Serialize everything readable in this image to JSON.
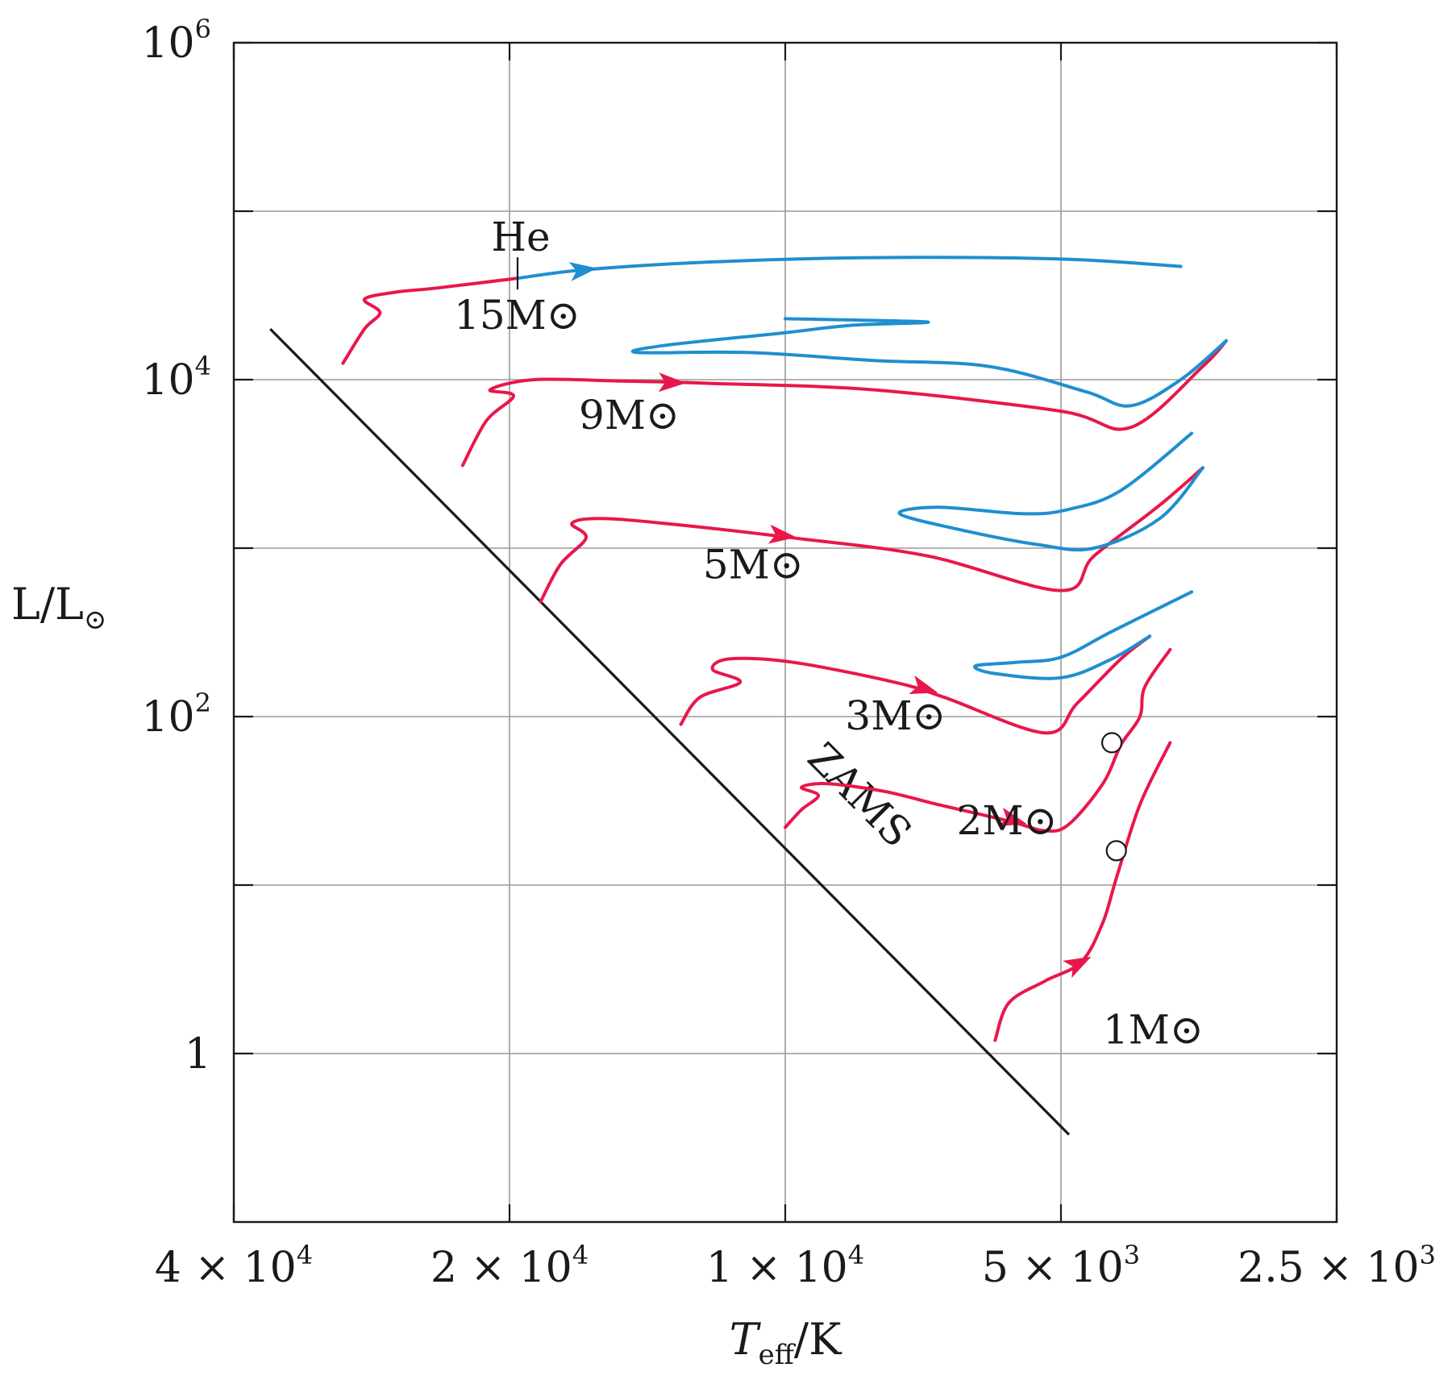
{
  "chart_data": {
    "type": "line",
    "x_scale": "log-reversed",
    "y_scale": "log",
    "xlim": [
      40000,
      2500
    ],
    "ylim": [
      0.1,
      1000000
    ],
    "grid": true,
    "x_ticks": [
      {
        "value": 40000,
        "mantissa": "4 × 10",
        "exp": "4"
      },
      {
        "value": 20000,
        "mantissa": "2 × 10",
        "exp": "4"
      },
      {
        "value": 10000,
        "mantissa": "1 × 10",
        "exp": "4"
      },
      {
        "value": 5000,
        "mantissa": "5 × 10",
        "exp": "3"
      },
      {
        "value": 2500,
        "mantissa": "2.5 × 10",
        "exp": "3"
      }
    ],
    "y_ticks": [
      {
        "value": 1,
        "base": "1",
        "exp": ""
      },
      {
        "value": 100,
        "base": "10",
        "exp": "2"
      },
      {
        "value": 10000,
        "base": "10",
        "exp": "4"
      },
      {
        "value": 1000000,
        "base": "10",
        "exp": "6"
      }
    ],
    "y_minor_grid": [
      10,
      1000,
      100000
    ],
    "xlabel": {
      "main": "T",
      "sub": "eff",
      "rest": "/K"
    },
    "ylabel": {
      "main": "L/L",
      "sub": "⊙"
    },
    "colors": {
      "main_sequence_to_giant": "#e8174a",
      "helium_burning": "#1e8fd0",
      "zams": "#1a1a1a"
    },
    "zams": {
      "label": "ZAMS",
      "points": [
        [
          36500,
          20000
        ],
        [
          4900,
          0.33
        ]
      ]
    },
    "he_marker_label": "He",
    "he_marker_point": [
      19600,
      40000
    ],
    "series": [
      {
        "name": "15M⊙",
        "red": [
          [
            30400,
            12500
          ],
          [
            28800,
            20000
          ],
          [
            27700,
            25000
          ],
          [
            28800,
            30000
          ],
          [
            26700,
            33000
          ],
          [
            24000,
            35000
          ],
          [
            19600,
            40000
          ]
        ],
        "blue": [
          [
            19600,
            40000
          ],
          [
            16500,
            45000
          ],
          [
            12000,
            50000
          ],
          [
            8000,
            53000
          ],
          [
            5000,
            52000
          ],
          [
            3700,
            47000
          ]
        ],
        "arrow_at": [
          16500,
          45000
        ],
        "arrow_color": "blue"
      },
      {
        "name": "9M⊙",
        "red": [
          [
            22500,
            3100
          ],
          [
            21200,
            5700
          ],
          [
            19800,
            8000
          ],
          [
            21000,
            8700
          ],
          [
            18800,
            10000
          ],
          [
            15000,
            9800
          ],
          [
            12000,
            9500
          ],
          [
            8000,
            8700
          ],
          [
            5000,
            6500
          ],
          [
            4200,
            5200
          ],
          [
            3500,
            12000
          ],
          [
            3300,
            17000
          ]
        ],
        "blue": [
          [
            3300,
            17000
          ],
          [
            3700,
            10000
          ],
          [
            4200,
            7000
          ],
          [
            4700,
            8500
          ],
          [
            6000,
            12000
          ],
          [
            8000,
            13000
          ],
          [
            11000,
            14500
          ],
          [
            14500,
            14500
          ],
          [
            13500,
            16000
          ],
          [
            10000,
            19000
          ],
          [
            8500,
            21000
          ],
          [
            7000,
            22000
          ],
          [
            10000,
            23000
          ]
        ],
        "arrow_at": [
          13200,
          9600
        ],
        "arrow_color": "red"
      },
      {
        "name": "5M⊙",
        "red": [
          [
            18500,
            480
          ],
          [
            17600,
            800
          ],
          [
            16500,
            1150
          ],
          [
            17100,
            1400
          ],
          [
            16000,
            1500
          ],
          [
            13500,
            1400
          ],
          [
            9800,
            1150
          ],
          [
            7000,
            900
          ],
          [
            5000,
            560
          ],
          [
            4600,
            900
          ],
          [
            3900,
            1800
          ],
          [
            3500,
            3000
          ]
        ],
        "blue": [
          [
            3500,
            3000
          ],
          [
            3900,
            1500
          ],
          [
            4600,
            1000
          ],
          [
            5300,
            1050
          ],
          [
            6500,
            1300
          ],
          [
            7500,
            1600
          ],
          [
            6800,
            1750
          ],
          [
            5500,
            1600
          ],
          [
            4900,
            1700
          ],
          [
            4300,
            2200
          ],
          [
            3600,
            4800
          ]
        ],
        "arrow_at": [
          10000,
          1180
        ],
        "arrow_color": "red"
      },
      {
        "name": "3M⊙",
        "red": [
          [
            13000,
            90
          ],
          [
            12400,
            130
          ],
          [
            11200,
            160
          ],
          [
            12000,
            190
          ],
          [
            11500,
            220
          ],
          [
            9800,
            210
          ],
          [
            7600,
            160
          ],
          [
            6700,
            130
          ],
          [
            5200,
            80
          ],
          [
            4800,
            120
          ],
          [
            4300,
            220
          ],
          [
            4000,
            300
          ]
        ],
        "blue": [
          [
            4000,
            300
          ],
          [
            4400,
            220
          ],
          [
            5000,
            170
          ],
          [
            5900,
            180
          ],
          [
            6200,
            200
          ],
          [
            5600,
            210
          ],
          [
            5000,
            225
          ],
          [
            4400,
            320
          ],
          [
            3600,
            550
          ]
        ],
        "arrow_at": [
          7000,
          145
        ],
        "arrow_color": "red"
      },
      {
        "name": "2M⊙",
        "red": [
          [
            10000,
            22
          ],
          [
            9600,
            28
          ],
          [
            9200,
            34
          ],
          [
            9600,
            38
          ],
          [
            9000,
            40
          ],
          [
            7800,
            36
          ],
          [
            6800,
            30
          ],
          [
            5700,
            24
          ],
          [
            5200,
            21
          ],
          [
            4900,
            23
          ],
          [
            4500,
            40
          ],
          [
            4300,
            68
          ],
          [
            4100,
            100
          ],
          [
            4050,
            150
          ],
          [
            3800,
            250
          ]
        ],
        "arrow_at": [
          5600,
          24
        ],
        "arrow_color": "red"
      },
      {
        "name": "1M⊙",
        "red": [
          [
            5900,
            1.2
          ],
          [
            5700,
            2.0
          ],
          [
            5200,
            2.7
          ],
          [
            4750,
            3.5
          ],
          [
            4500,
            6.0
          ],
          [
            4350,
            11.0
          ],
          [
            4100,
            30.0
          ],
          [
            3800,
            70.0
          ]
        ],
        "arrow_at": [
          4750,
          3.5
        ],
        "arrow_color": "red"
      }
    ],
    "markers": [
      [
        4400,
        70
      ],
      [
        4350,
        16
      ]
    ],
    "labels": [
      {
        "series": "15M⊙",
        "at": [
          23000,
          20000
        ]
      },
      {
        "series": "9M⊙",
        "at": [
          16800,
          5100
        ]
      },
      {
        "series": "5M⊙",
        "at": [
          12300,
          660
        ]
      },
      {
        "series": "3M⊙",
        "at": [
          8600,
          84
        ]
      },
      {
        "series": "2M⊙",
        "at": [
          6500,
          20
        ]
      },
      {
        "series": "1M⊙",
        "at": [
          4500,
          1.15
        ]
      }
    ]
  }
}
